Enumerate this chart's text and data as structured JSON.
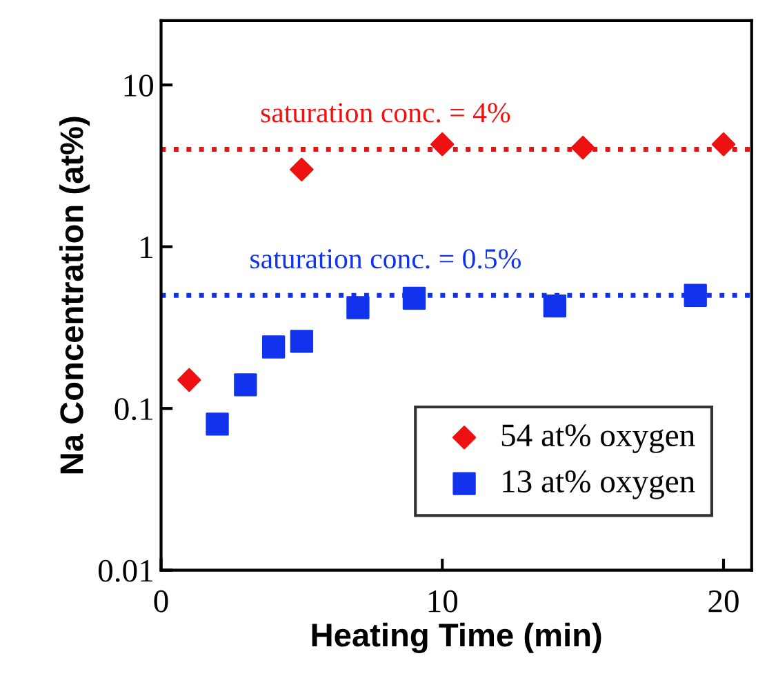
{
  "chart_data": {
    "type": "scatter",
    "xlabel": "Heating Time (min)",
    "ylabel": "Na Concentration (at%)",
    "log": "y",
    "xlim": [
      0,
      21
    ],
    "ylim": [
      0.01,
      25
    ],
    "xticks": [
      0,
      10,
      20
    ],
    "yticks": [
      0.01,
      0.1,
      1,
      10
    ],
    "series": [
      {
        "name": "54 at% oxygen",
        "color": "#ee1111",
        "marker": "diamond",
        "x": [
          1,
          5,
          10,
          15,
          20
        ],
        "values": [
          0.15,
          3,
          4.3,
          4.1,
          4.3
        ]
      },
      {
        "name": "13 at% oxygen",
        "color": "#1133ee",
        "marker": "square",
        "x": [
          2,
          3,
          4,
          5,
          7,
          9,
          14,
          19
        ],
        "values": [
          0.08,
          0.14,
          0.24,
          0.26,
          0.42,
          0.48,
          0.43,
          0.5
        ]
      }
    ],
    "ref_lines": [
      {
        "axis": "y",
        "value": 4,
        "label": "saturation conc. = 4%",
        "color": "#ee1111",
        "line_style": "dotted"
      },
      {
        "axis": "y",
        "value": 0.5,
        "label": "saturation conc. = 0.5%",
        "color": "#1133ee",
        "line_style": "dotted"
      }
    ],
    "grid": false,
    "legend": "bottom right"
  }
}
